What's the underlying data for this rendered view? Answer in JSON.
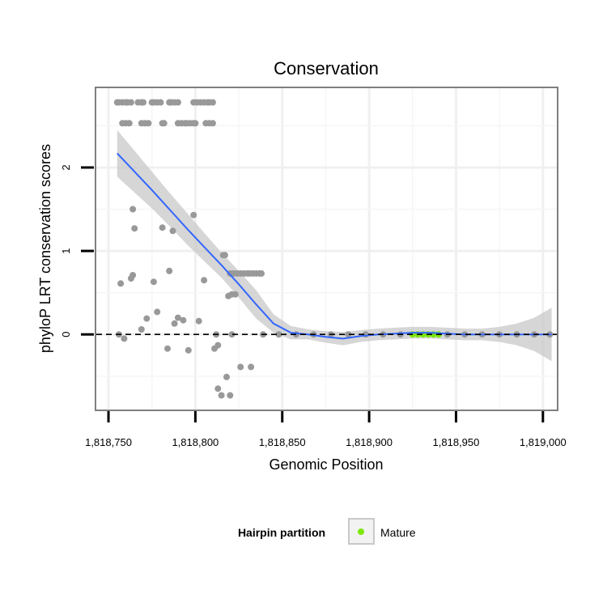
{
  "chart_data": {
    "type": "scatter",
    "title": "Conservation",
    "xlabel": "Genomic Position",
    "ylabel": "phyloP LRT conservation scores",
    "xlim": [
      1818743,
      1819008
    ],
    "ylim": [
      -0.9,
      2.95
    ],
    "x_ticks": [
      1818750,
      1818800,
      1818850,
      1818900,
      1818950,
      1819000
    ],
    "x_tick_labels": [
      "1,818,750",
      "1,818,800",
      "1,818,850",
      "1,818,900",
      "1,818,950",
      "1,819,000"
    ],
    "y_ticks": [
      0,
      1,
      2
    ],
    "y_tick_labels": [
      "0",
      "1",
      "2"
    ],
    "grid": true,
    "reference_line": {
      "y": 0,
      "style": "dashed"
    },
    "legend": {
      "title": "Hairpin partition",
      "position": "bottom",
      "entries": [
        {
          "label": "Mature",
          "color": "#7ce80a"
        }
      ]
    },
    "colors": {
      "points": "#999999",
      "mature": "#7ce80a",
      "smooth": "#3366ff",
      "band": "#c8c8c8",
      "grid": "#f0f0f0",
      "frame": "#7f7f7f"
    },
    "series": [
      {
        "name": "conservation scores",
        "points": [
          [
            1818755,
            2.78
          ],
          [
            1818756,
            2.78
          ],
          [
            1818758,
            2.78
          ],
          [
            1818760,
            2.78
          ],
          [
            1818761,
            2.78
          ],
          [
            1818763,
            2.78
          ],
          [
            1818767,
            2.78
          ],
          [
            1818769,
            2.78
          ],
          [
            1818770,
            2.78
          ],
          [
            1818775,
            2.78
          ],
          [
            1818776,
            2.78
          ],
          [
            1818778,
            2.78
          ],
          [
            1818780,
            2.78
          ],
          [
            1818785,
            2.78
          ],
          [
            1818786,
            2.78
          ],
          [
            1818788,
            2.78
          ],
          [
            1818790,
            2.78
          ],
          [
            1818799,
            2.78
          ],
          [
            1818801,
            2.78
          ],
          [
            1818803,
            2.78
          ],
          [
            1818805,
            2.78
          ],
          [
            1818807,
            2.78
          ],
          [
            1818808,
            2.78
          ],
          [
            1818810,
            2.78
          ],
          [
            1818758,
            2.53
          ],
          [
            1818760,
            2.53
          ],
          [
            1818762,
            2.53
          ],
          [
            1818769,
            2.53
          ],
          [
            1818771,
            2.53
          ],
          [
            1818773,
            2.53
          ],
          [
            1818781,
            2.53
          ],
          [
            1818782,
            2.53
          ],
          [
            1818790,
            2.53
          ],
          [
            1818792,
            2.53
          ],
          [
            1818794,
            2.53
          ],
          [
            1818795,
            2.53
          ],
          [
            1818797,
            2.53
          ],
          [
            1818799,
            2.53
          ],
          [
            1818800,
            2.53
          ],
          [
            1818806,
            2.53
          ],
          [
            1818808,
            2.53
          ],
          [
            1818810,
            2.53
          ],
          [
            1818764,
            1.5
          ],
          [
            1818765,
            1.27
          ],
          [
            1818781,
            1.28
          ],
          [
            1818787,
            1.24
          ],
          [
            1818799,
            1.43
          ],
          [
            1818816,
            0.95
          ],
          [
            1818817,
            0.95
          ],
          [
            1818785,
            0.76
          ],
          [
            1818805,
            0.65
          ],
          [
            1818776,
            0.63
          ],
          [
            1818764,
            0.71
          ],
          [
            1818763,
            0.67
          ],
          [
            1818757,
            0.61
          ],
          [
            1818820,
            0.73
          ],
          [
            1818822,
            0.73
          ],
          [
            1818824,
            0.73
          ],
          [
            1818826,
            0.73
          ],
          [
            1818828,
            0.73
          ],
          [
            1818830,
            0.73
          ],
          [
            1818831,
            0.73
          ],
          [
            1818833,
            0.73
          ],
          [
            1818835,
            0.73
          ],
          [
            1818837,
            0.73
          ],
          [
            1818838,
            0.73
          ],
          [
            1818819,
            0.46
          ],
          [
            1818821,
            0.48
          ],
          [
            1818823,
            0.48
          ],
          [
            1818778,
            0.27
          ],
          [
            1818772,
            0.19
          ],
          [
            1818790,
            0.2
          ],
          [
            1818793,
            0.17
          ],
          [
            1818788,
            0.13
          ],
          [
            1818802,
            0.16
          ],
          [
            1818769,
            0.06
          ],
          [
            1818756,
            0.0
          ],
          [
            1818759,
            -0.05
          ],
          [
            1818812,
            0.0
          ],
          [
            1818821,
            0.0
          ],
          [
            1818813,
            -0.13
          ],
          [
            1818811,
            -0.17
          ],
          [
            1818784,
            -0.17
          ],
          [
            1818796,
            -0.19
          ],
          [
            1818826,
            -0.39
          ],
          [
            1818832,
            -0.39
          ],
          [
            1818818,
            -0.51
          ],
          [
            1818813,
            -0.65
          ],
          [
            1818815,
            -0.73
          ],
          [
            1818820,
            -0.73
          ],
          [
            1818839,
            0.0
          ],
          [
            1818848,
            0.0
          ],
          [
            1818858,
            0.0
          ],
          [
            1818868,
            0.0
          ],
          [
            1818878,
            0.0
          ],
          [
            1818888,
            0.0
          ],
          [
            1818898,
            0.0
          ],
          [
            1818908,
            0.0
          ],
          [
            1818918,
            0.0
          ],
          [
            1818945,
            0.0
          ],
          [
            1818955,
            0.0
          ],
          [
            1818965,
            0.0
          ],
          [
            1818975,
            0.0
          ],
          [
            1818985,
            0.0
          ],
          [
            1818995,
            0.0
          ],
          [
            1819004,
            0.0
          ]
        ]
      },
      {
        "name": "Mature",
        "points": [
          [
            1818925,
            0.0
          ],
          [
            1818928,
            0.0
          ],
          [
            1818931,
            0.0
          ],
          [
            1818934,
            0.0
          ],
          [
            1818937,
            0.0
          ],
          [
            1818940,
            0.0
          ]
        ]
      }
    ],
    "smooth": {
      "x": [
        1818755,
        1818765,
        1818775,
        1818785,
        1818795,
        1818805,
        1818815,
        1818825,
        1818835,
        1818845,
        1818855,
        1818865,
        1818875,
        1818885,
        1818895,
        1818905,
        1818915,
        1818925,
        1818935,
        1818945,
        1818955,
        1818965,
        1818975,
        1818985,
        1818995,
        1819005
      ],
      "y": [
        2.17,
        1.95,
        1.73,
        1.5,
        1.27,
        1.05,
        0.83,
        0.6,
        0.36,
        0.13,
        0.02,
        0.0,
        -0.03,
        -0.05,
        -0.02,
        0.0,
        0.01,
        0.02,
        0.02,
        0.01,
        0.0,
        0.0,
        0.0,
        0.0,
        0.0,
        0.0
      ],
      "upper": [
        2.45,
        2.2,
        1.95,
        1.7,
        1.46,
        1.22,
        0.98,
        0.76,
        0.53,
        0.24,
        0.1,
        0.06,
        0.04,
        0.03,
        0.05,
        0.07,
        0.08,
        0.09,
        0.09,
        0.08,
        0.07,
        0.07,
        0.09,
        0.13,
        0.2,
        0.32
      ],
      "lower": [
        1.89,
        1.7,
        1.51,
        1.3,
        1.08,
        0.88,
        0.68,
        0.44,
        0.19,
        0.02,
        -0.06,
        -0.06,
        -0.1,
        -0.13,
        -0.09,
        -0.07,
        -0.06,
        -0.05,
        -0.05,
        -0.06,
        -0.07,
        -0.07,
        -0.09,
        -0.13,
        -0.2,
        -0.32
      ]
    }
  }
}
